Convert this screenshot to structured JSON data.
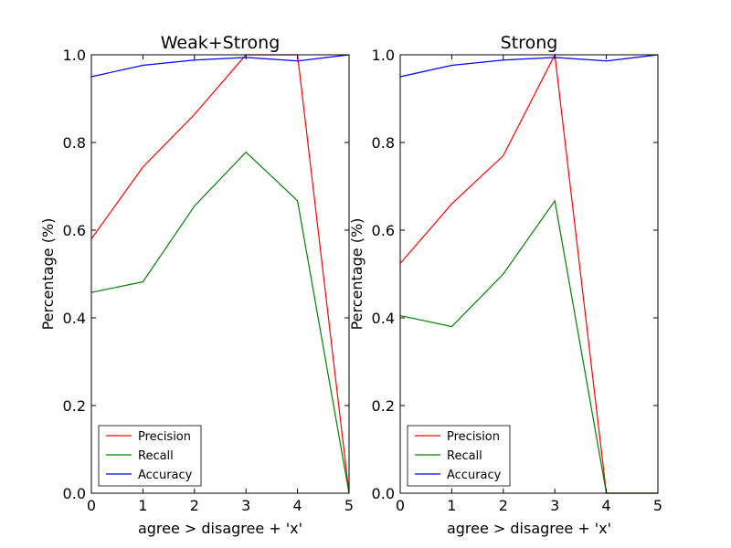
{
  "chart_data": [
    {
      "type": "line",
      "title": "Weak+Strong",
      "xlabel": "agree > disagree + 'x'",
      "ylabel": "Percentage (%)",
      "x": [
        0,
        1,
        2,
        3,
        4,
        5
      ],
      "xlim": [
        0,
        5
      ],
      "ylim": [
        0.0,
        1.0
      ],
      "xticks": [
        "0",
        "1",
        "2",
        "3",
        "4",
        "5"
      ],
      "yticks": [
        "0.0",
        "0.2",
        "0.4",
        "0.6",
        "0.8",
        "1.0"
      ],
      "grid": false,
      "legend_position": "bottom-left",
      "series": [
        {
          "name": "Precision",
          "color": "#ff0000",
          "values": [
            0.58,
            0.744,
            0.864,
            1.0,
            1.0,
            0.0
          ]
        },
        {
          "name": "Recall",
          "color": "#008000",
          "values": [
            0.458,
            0.482,
            0.655,
            0.778,
            0.667,
            0.0
          ]
        },
        {
          "name": "Accuracy",
          "color": "#0000ff",
          "values": [
            0.95,
            0.976,
            0.988,
            0.994,
            0.986,
            1.0
          ]
        }
      ]
    },
    {
      "type": "line",
      "title": "Strong",
      "xlabel": "agree > disagree + 'x'",
      "ylabel": "Percentage (%)",
      "x": [
        0,
        1,
        2,
        3,
        4,
        5
      ],
      "xlim": [
        0,
        5
      ],
      "ylim": [
        0.0,
        1.0
      ],
      "xticks": [
        "0",
        "1",
        "2",
        "3",
        "4",
        "5"
      ],
      "yticks": [
        "0.0",
        "0.2",
        "0.4",
        "0.6",
        "0.8",
        "1.0"
      ],
      "grid": false,
      "legend_position": "bottom-left",
      "series": [
        {
          "name": "Precision",
          "color": "#ff0000",
          "values": [
            0.524,
            0.66,
            0.77,
            1.0,
            0.0,
            0.0
          ]
        },
        {
          "name": "Recall",
          "color": "#008000",
          "values": [
            0.405,
            0.38,
            0.5,
            0.667,
            0.0,
            0.0
          ]
        },
        {
          "name": "Accuracy",
          "color": "#0000ff",
          "values": [
            0.95,
            0.976,
            0.988,
            0.994,
            0.986,
            1.0
          ]
        }
      ]
    }
  ]
}
